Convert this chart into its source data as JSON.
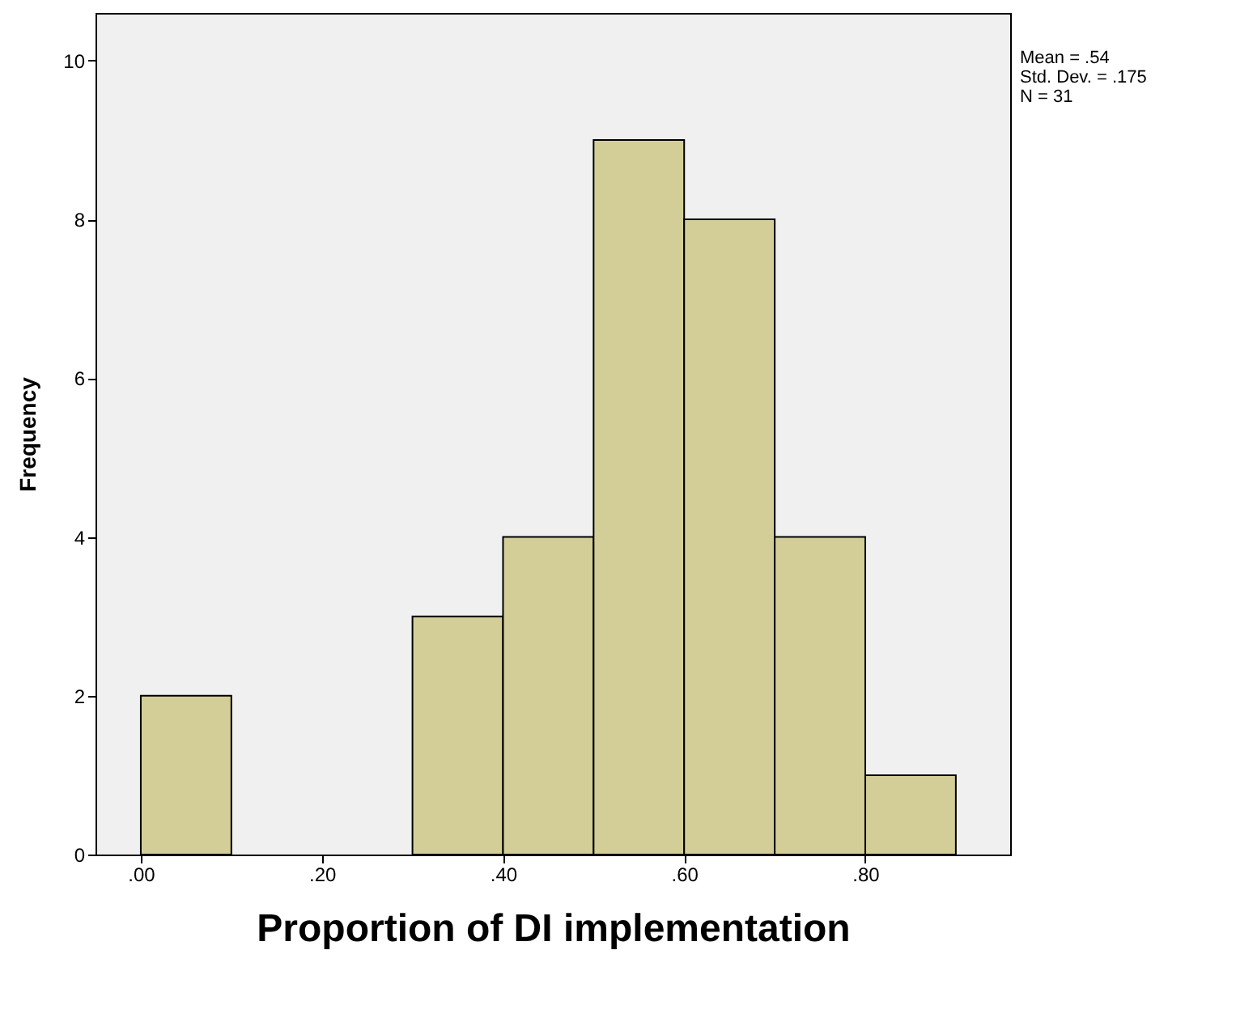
{
  "chart_data": {
    "type": "histogram",
    "xlabel": "Proportion of DI implementation",
    "ylabel": "Frequency",
    "bins": [
      0,
      0.1,
      0.2,
      0.3,
      0.4,
      0.5,
      0.6,
      0.7,
      0.8,
      0.9
    ],
    "values": [
      2,
      0,
      0,
      3,
      4,
      9,
      8,
      4,
      1
    ],
    "color": "#d3ce97",
    "xlim": [
      -0.05,
      0.96
    ],
    "xticks": [
      {
        "value": 0,
        "label": ".00"
      },
      {
        "value": 0.2,
        "label": ".20"
      },
      {
        "value": 0.4,
        "label": ".40"
      },
      {
        "value": 0.6,
        "label": ".60"
      },
      {
        "value": 0.8,
        "label": ".80"
      }
    ],
    "ylim": [
      0,
      10.6
    ],
    "yticks": [
      0,
      2,
      4,
      6,
      8,
      10
    ],
    "grid": false,
    "annotations": [
      "Mean = .54",
      "Std. Dev. = .175",
      "N = 31"
    ]
  }
}
